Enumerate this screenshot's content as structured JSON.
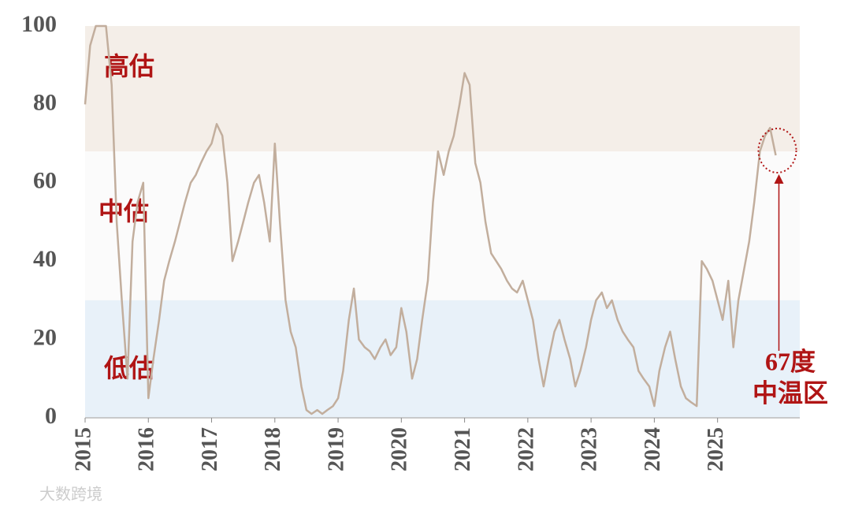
{
  "chart_data": {
    "type": "line",
    "x": [
      2015.0,
      2015.08,
      2015.17,
      2015.25,
      2015.33,
      2015.42,
      2015.5,
      2015.58,
      2015.67,
      2015.75,
      2015.83,
      2015.92,
      2016.0,
      2016.08,
      2016.17,
      2016.25,
      2016.33,
      2016.42,
      2016.5,
      2016.58,
      2016.67,
      2016.75,
      2016.83,
      2016.92,
      2017.0,
      2017.08,
      2017.17,
      2017.25,
      2017.33,
      2017.42,
      2017.5,
      2017.58,
      2017.67,
      2017.75,
      2017.83,
      2017.92,
      2018.0,
      2018.08,
      2018.17,
      2018.25,
      2018.33,
      2018.42,
      2018.5,
      2018.58,
      2018.67,
      2018.75,
      2018.83,
      2018.92,
      2019.0,
      2019.08,
      2019.17,
      2019.25,
      2019.33,
      2019.42,
      2019.5,
      2019.58,
      2019.67,
      2019.75,
      2019.83,
      2019.92,
      2020.0,
      2020.08,
      2020.17,
      2020.25,
      2020.33,
      2020.42,
      2020.5,
      2020.58,
      2020.67,
      2020.75,
      2020.83,
      2020.92,
      2021.0,
      2021.08,
      2021.17,
      2021.25,
      2021.33,
      2021.42,
      2021.5,
      2021.58,
      2021.67,
      2021.75,
      2021.83,
      2021.92,
      2022.0,
      2022.08,
      2022.17,
      2022.25,
      2022.33,
      2022.42,
      2022.5,
      2022.58,
      2022.67,
      2022.75,
      2022.83,
      2022.92,
      2023.0,
      2023.08,
      2023.17,
      2023.25,
      2023.33,
      2023.42,
      2023.5,
      2023.58,
      2023.67,
      2023.75,
      2023.83,
      2023.92,
      2024.0,
      2024.08,
      2024.17,
      2024.25,
      2024.33,
      2024.42,
      2024.5,
      2024.58,
      2024.67,
      2024.75,
      2024.83,
      2024.92,
      2025.0,
      2025.08,
      2025.17,
      2025.25,
      2025.33,
      2025.42,
      2025.5,
      2025.58,
      2025.67,
      2025.75,
      2025.83,
      2025.92
    ],
    "series": [
      {
        "color": "#c2ae9d",
        "values": [
          80,
          95,
          100,
          100,
          100,
          85,
          50,
          30,
          10,
          45,
          55,
          60,
          5,
          15,
          25,
          35,
          40,
          45,
          50,
          55,
          60,
          62,
          65,
          68,
          70,
          75,
          72,
          60,
          40,
          45,
          50,
          55,
          60,
          62,
          55,
          45,
          70,
          50,
          30,
          22,
          18,
          8,
          2,
          1,
          2,
          1,
          2,
          3,
          5,
          12,
          25,
          33,
          20,
          18,
          17,
          15,
          18,
          20,
          16,
          18,
          28,
          22,
          10,
          15,
          25,
          35,
          55,
          68,
          62,
          68,
          72,
          80,
          88,
          85,
          65,
          60,
          50,
          42,
          40,
          38,
          35,
          33,
          32,
          35,
          30,
          25,
          15,
          8,
          15,
          22,
          25,
          20,
          15,
          8,
          12,
          18,
          25,
          30,
          32,
          28,
          30,
          25,
          22,
          20,
          18,
          12,
          10,
          8,
          3,
          12,
          18,
          22,
          15,
          8,
          5,
          4,
          3,
          40,
          38,
          35,
          30,
          25,
          35,
          18,
          30,
          38,
          45,
          55,
          68,
          72,
          74,
          67
        ]
      }
    ],
    "bands": [
      {
        "label": "高估",
        "from": 68,
        "to": 100,
        "color": "#f4eee8"
      },
      {
        "label": "中估",
        "from": 30,
        "to": 68,
        "color": "#fbfbfb"
      },
      {
        "label": "低估",
        "from": 0,
        "to": 30,
        "color": "#e8f1f9"
      }
    ],
    "annotation": {
      "lines": [
        "67度",
        "中温区"
      ],
      "color": "#b01515"
    },
    "watermark": "大数跨境",
    "xlim": [
      2015,
      2026.3
    ],
    "xticks": [
      2015,
      2016,
      2017,
      2018,
      2019,
      2020,
      2021,
      2022,
      2023,
      2024,
      2025
    ],
    "ylim": [
      0,
      100
    ],
    "yticks": [
      0,
      20,
      40,
      60,
      80,
      100
    ]
  }
}
